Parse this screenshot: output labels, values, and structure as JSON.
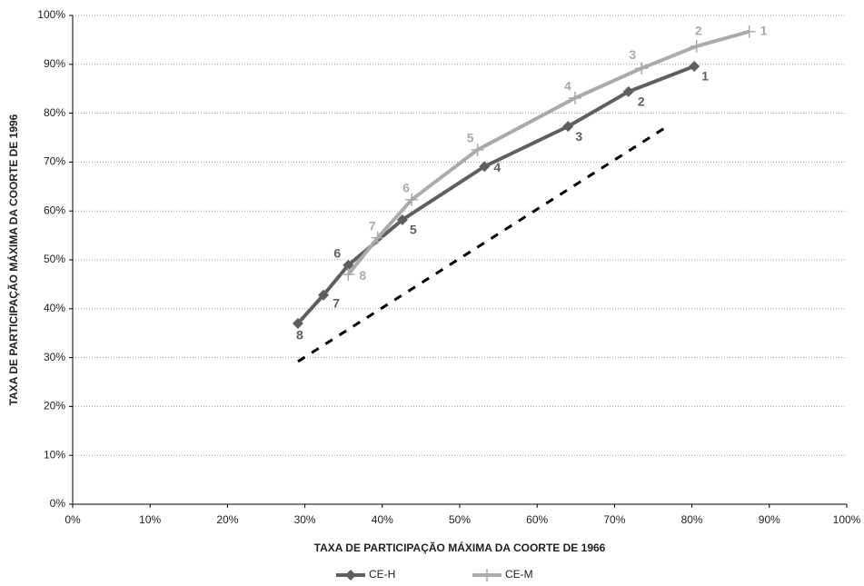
{
  "chart_data": {
    "type": "line",
    "x_label": "TAXA DE PARTICIPAÇÃO MÁXIMA DA COORTE DE 1966",
    "y_label": "TAXA DE PARTICIPAÇÃO MÁXIMA DA COORTE DE 1996",
    "xlim": [
      0,
      100
    ],
    "ylim": [
      0,
      100
    ],
    "xticks": [
      {
        "value": 0,
        "label": "0%"
      },
      {
        "value": 10,
        "label": "10%"
      },
      {
        "value": 20,
        "label": "20%"
      },
      {
        "value": 30,
        "label": "30%"
      },
      {
        "value": 40,
        "label": "40%"
      },
      {
        "value": 50,
        "label": "50%"
      },
      {
        "value": 60,
        "label": "60%"
      },
      {
        "value": 70,
        "label": "70%"
      },
      {
        "value": 80,
        "label": "80%"
      },
      {
        "value": 90,
        "label": "90%"
      },
      {
        "value": 100,
        "label": "100%"
      }
    ],
    "yticks": [
      {
        "value": 0,
        "label": "0%"
      },
      {
        "value": 10,
        "label": "10%"
      },
      {
        "value": 20,
        "label": "20%"
      },
      {
        "value": 30,
        "label": "30%"
      },
      {
        "value": 40,
        "label": "40%"
      },
      {
        "value": 50,
        "label": "50%"
      },
      {
        "value": 60,
        "label": "60%"
      },
      {
        "value": 70,
        "label": "70%"
      },
      {
        "value": 80,
        "label": "80%"
      },
      {
        "value": 90,
        "label": "90%"
      },
      {
        "value": 100,
        "label": "100%"
      }
    ],
    "grid": true,
    "legend": "bottom",
    "series": [
      {
        "name": "CE-H",
        "color": "#5f5f5f",
        "marker": "diamond",
        "x": [
          80.3,
          71.8,
          64.0,
          53.2,
          42.6,
          35.6,
          32.4,
          29.1
        ],
        "values": [
          89.6,
          84.4,
          77.3,
          69.1,
          58.2,
          48.9,
          42.8,
          37.0
        ],
        "point_labels": [
          "1",
          "2",
          "3",
          "4",
          "5",
          "6",
          "7",
          "8"
        ]
      },
      {
        "name": "CE-M",
        "color": "#aaaaaa",
        "marker": "cross",
        "x": [
          87.4,
          80.6,
          73.5,
          64.9,
          52.3,
          43.8,
          39.4,
          35.6
        ],
        "values": [
          96.7,
          93.7,
          89.2,
          83.1,
          72.5,
          62.3,
          54.5,
          47.0
        ],
        "point_labels": [
          "1",
          "2",
          "3",
          "4",
          "5",
          "6",
          "7",
          "8"
        ]
      }
    ],
    "reference_line": {
      "color": "#000000",
      "x": [
        29.1,
        77.2
      ],
      "values": [
        29.2,
        77.7
      ]
    }
  }
}
